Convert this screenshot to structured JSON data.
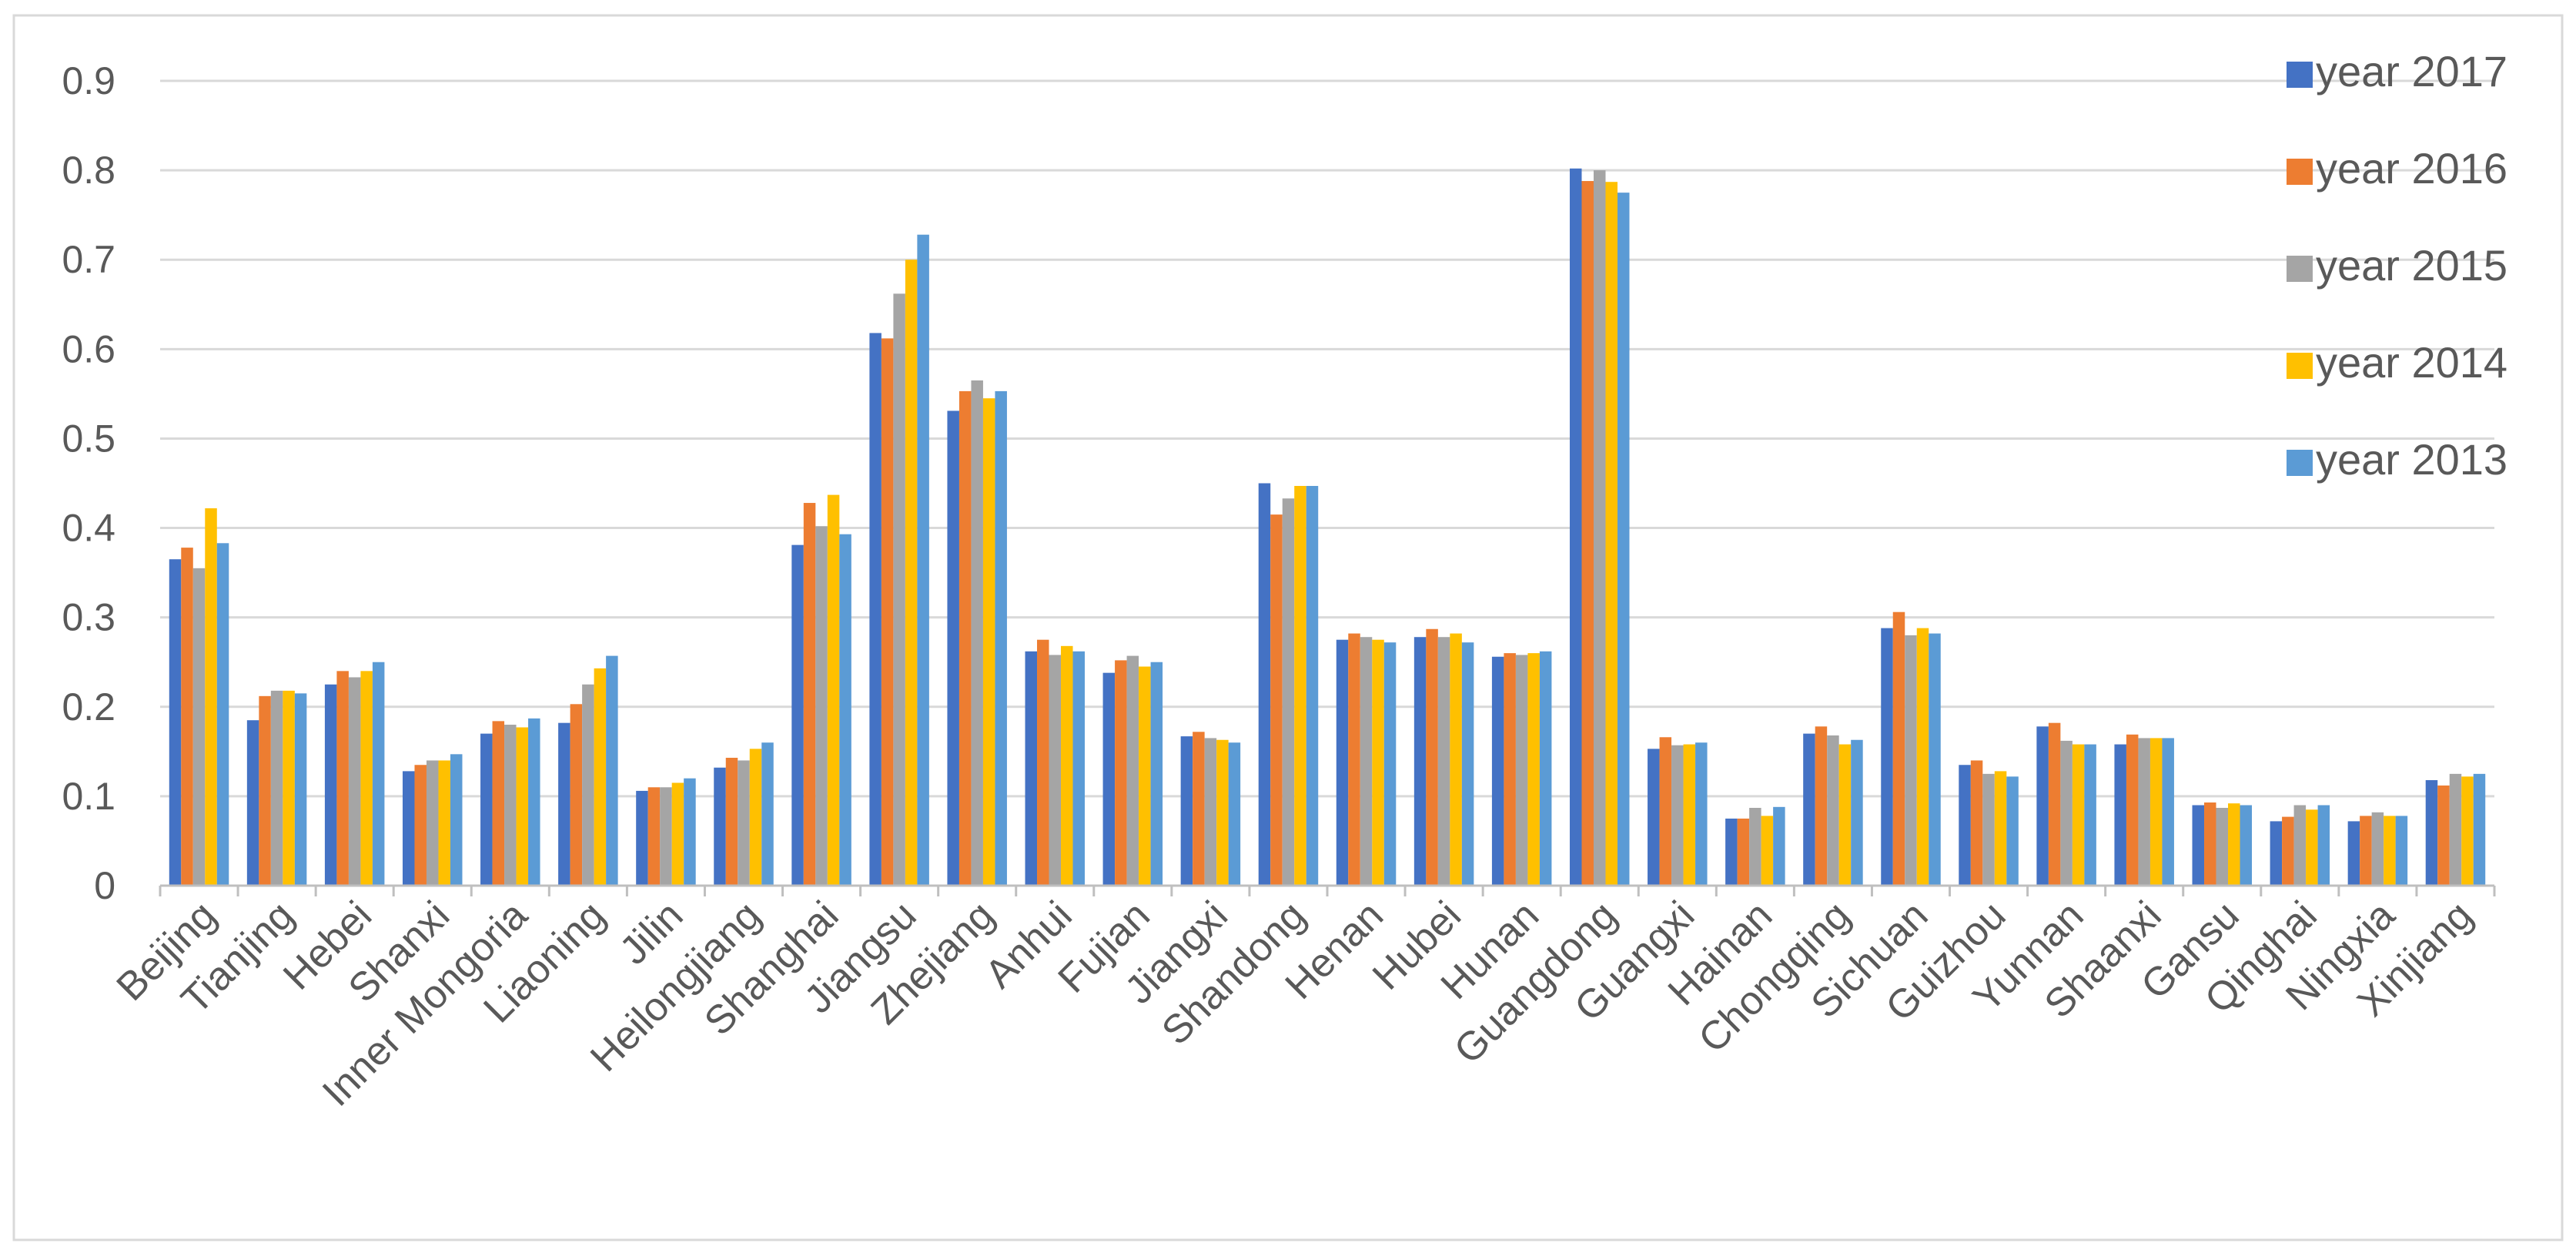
{
  "chart_data": {
    "type": "bar",
    "title": "",
    "xlabel": "",
    "ylabel": "",
    "ylim": [
      0,
      0.9
    ],
    "yticks": [
      "0",
      "0.1",
      "0.2",
      "0.3",
      "0.4",
      "0.5",
      "0.6",
      "0.7",
      "0.8",
      "0.9"
    ],
    "grid": true,
    "legend_position": "right",
    "categories": [
      "Beijing",
      "Tianjing",
      "Hebei",
      "Shanxi",
      "Inner Mongoria",
      "Liaoning",
      "Jilin",
      "Heilongjiang",
      "Shanghai",
      "Jiangsu",
      "Zhejiang",
      "Anhui",
      "Fujian",
      "Jiangxi",
      "Shandong",
      "Henan",
      "Hubei",
      "Hunan",
      "Guangdong",
      "Guangxi",
      "Hainan",
      "Chongqing",
      "Sichuan",
      "Guizhou",
      "Yunnan",
      "Shaanxi",
      "Gansu",
      "Qinghai",
      "Ningxia",
      "Xinjiang"
    ],
    "series": [
      {
        "name": "year 2017",
        "color": "#4472C4",
        "values": [
          0.365,
          0.185,
          0.225,
          0.128,
          0.17,
          0.182,
          0.106,
          0.132,
          0.381,
          0.618,
          0.531,
          0.262,
          0.238,
          0.167,
          0.45,
          0.275,
          0.278,
          0.256,
          0.802,
          0.153,
          0.075,
          0.17,
          0.288,
          0.135,
          0.178,
          0.158,
          0.09,
          0.072,
          0.072,
          0.118
        ]
      },
      {
        "name": "year 2016",
        "color": "#ED7D31",
        "values": [
          0.378,
          0.212,
          0.24,
          0.135,
          0.184,
          0.203,
          0.11,
          0.143,
          0.428,
          0.612,
          0.553,
          0.275,
          0.252,
          0.172,
          0.415,
          0.282,
          0.287,
          0.26,
          0.788,
          0.166,
          0.075,
          0.178,
          0.306,
          0.14,
          0.182,
          0.169,
          0.093,
          0.077,
          0.078,
          0.112
        ]
      },
      {
        "name": "year 2015",
        "color": "#A5A5A5",
        "values": [
          0.355,
          0.218,
          0.233,
          0.14,
          0.18,
          0.225,
          0.11,
          0.14,
          0.402,
          0.662,
          0.565,
          0.258,
          0.257,
          0.165,
          0.433,
          0.278,
          0.278,
          0.258,
          0.8,
          0.157,
          0.087,
          0.168,
          0.28,
          0.125,
          0.162,
          0.165,
          0.087,
          0.09,
          0.082,
          0.125
        ]
      },
      {
        "name": "year 2014",
        "color": "#FFC000",
        "values": [
          0.422,
          0.218,
          0.24,
          0.14,
          0.177,
          0.243,
          0.115,
          0.153,
          0.437,
          0.7,
          0.545,
          0.268,
          0.245,
          0.163,
          0.447,
          0.275,
          0.282,
          0.26,
          0.787,
          0.158,
          0.078,
          0.158,
          0.288,
          0.128,
          0.158,
          0.165,
          0.092,
          0.085,
          0.078,
          0.122
        ]
      },
      {
        "name": "year 2013",
        "color": "#5B9BD5",
        "values": [
          0.383,
          0.215,
          0.25,
          0.147,
          0.187,
          0.257,
          0.12,
          0.16,
          0.393,
          0.728,
          0.553,
          0.262,
          0.25,
          0.16,
          0.447,
          0.272,
          0.272,
          0.262,
          0.775,
          0.16,
          0.088,
          0.163,
          0.282,
          0.122,
          0.158,
          0.165,
          0.09,
          0.09,
          0.078,
          0.125
        ]
      }
    ]
  }
}
